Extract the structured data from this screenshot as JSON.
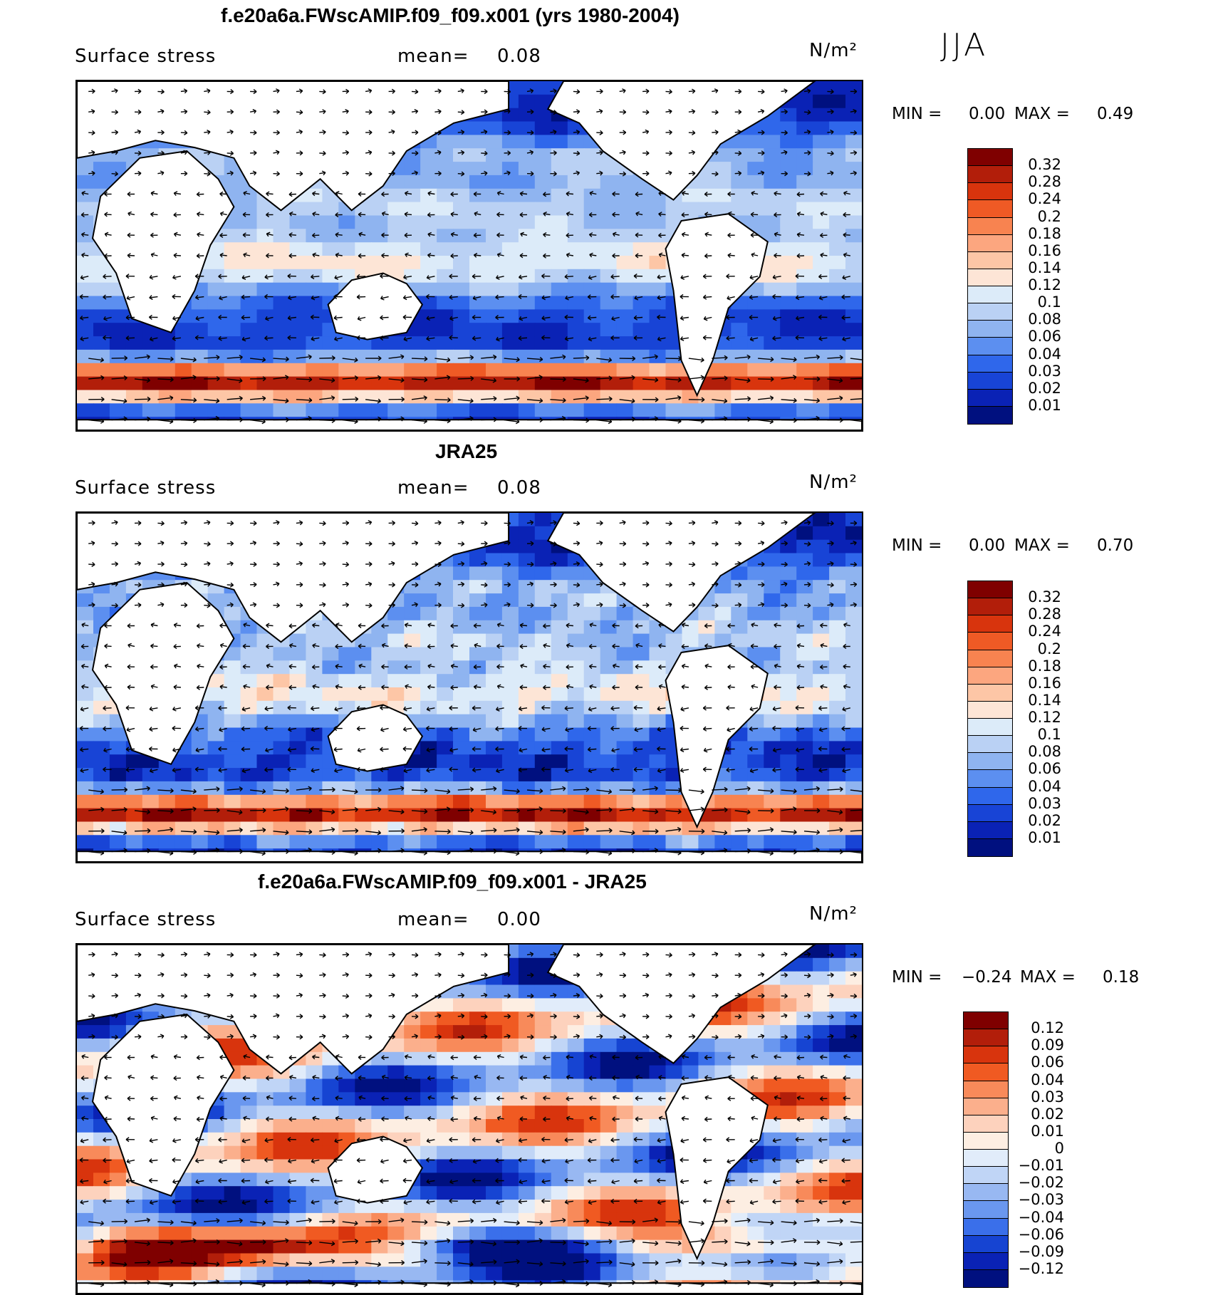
{
  "season": "JJA",
  "panels": [
    {
      "title": "f.e20a6a.FWscAMIP.f09_f09.x001 (yrs 1980-2004)",
      "field": "Surface stress",
      "mean_label": "mean=",
      "mean_value": "0.08",
      "units": "N/m²",
      "min_label": "MIN =",
      "min_value": "0.00",
      "max_label": "MAX =",
      "max_value": "0.49",
      "colorbar": {
        "labels": [
          "0.32",
          "0.28",
          "0.24",
          "0.2",
          "0.18",
          "0.16",
          "0.14",
          "0.12",
          "0.1",
          "0.08",
          "0.06",
          "0.04",
          "0.03",
          "0.02",
          "0.01"
        ],
        "colors": [
          "#7f0000",
          "#b21e0a",
          "#d8340d",
          "#ef5a25",
          "#f88350",
          "#fca67f",
          "#fdc6a6",
          "#fde5d6",
          "#dcebf9",
          "#bad1f4",
          "#8fb4f0",
          "#5c8ff0",
          "#2f67eb",
          "#1844d6",
          "#0a22b5",
          "#00107f"
        ]
      },
      "map_style": "model"
    },
    {
      "title": "JRA25",
      "field": "Surface stress",
      "mean_label": "mean=",
      "mean_value": "0.08",
      "units": "N/m²",
      "min_label": "MIN =",
      "min_value": "0.00",
      "max_label": "MAX =",
      "max_value": "0.70",
      "colorbar": {
        "labels": [
          "0.32",
          "0.28",
          "0.24",
          "0.2",
          "0.18",
          "0.16",
          "0.14",
          "0.12",
          "0.1",
          "0.08",
          "0.06",
          "0.04",
          "0.03",
          "0.02",
          "0.01"
        ],
        "colors": [
          "#7f0000",
          "#b21e0a",
          "#d8340d",
          "#ef5a25",
          "#f88350",
          "#fca67f",
          "#fdc6a6",
          "#fde5d6",
          "#dcebf9",
          "#bad1f4",
          "#8fb4f0",
          "#5c8ff0",
          "#2f67eb",
          "#1844d6",
          "#0a22b5",
          "#00107f"
        ]
      },
      "map_style": "obs"
    },
    {
      "title": "f.e20a6a.FWscAMIP.f09_f09.x001 - JRA25",
      "field": "Surface stress",
      "mean_label": "mean=",
      "mean_value": "0.00",
      "units": "N/m²",
      "min_label": "MIN =",
      "min_value": "−0.24",
      "max_label": "MAX =",
      "max_value": "0.18",
      "colorbar": {
        "labels": [
          "0.12",
          "0.09",
          "0.06",
          "0.04",
          "0.03",
          "0.02",
          "0.01",
          "0",
          "−0.01",
          "−0.02",
          "−0.03",
          "−0.04",
          "−0.06",
          "−0.09",
          "−0.12"
        ],
        "colors": [
          "#7f0000",
          "#b21e0a",
          "#d8340d",
          "#f05a22",
          "#f88a5a",
          "#fbaf8c",
          "#fdd2bd",
          "#fdeee2",
          "#e1ecfa",
          "#c0d5f6",
          "#98b8f2",
          "#6a97ef",
          "#3a6fea",
          "#1644d2",
          "#0a22b5",
          "#00107f"
        ]
      },
      "map_style": "diff"
    }
  ]
}
